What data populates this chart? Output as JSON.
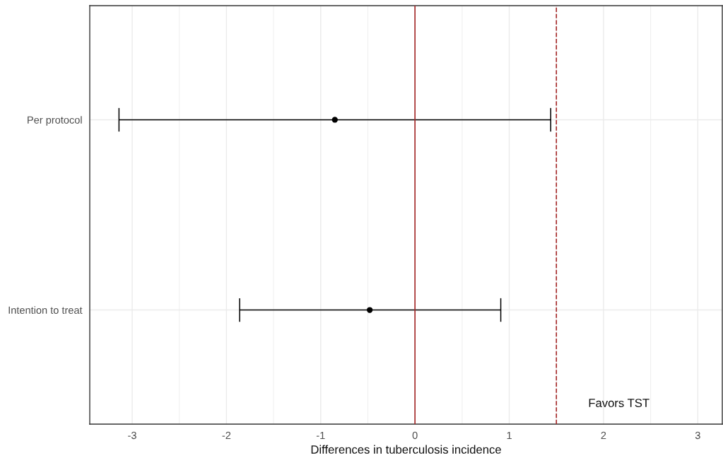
{
  "chart_data": {
    "type": "scatter",
    "orientation": "horizontal",
    "categories": [
      "Per protocol",
      "Intention to treat"
    ],
    "series": [
      {
        "color": "#000000",
        "values": [
          -0.85,
          -0.48
        ],
        "errors": [
          [
            -3.14,
            1.44
          ],
          [
            -1.86,
            0.91
          ]
        ]
      }
    ],
    "xlabel": "Differences in tuberculosis incidence",
    "xlim": [
      -3.45,
      3.26
    ],
    "xticks": [
      -3,
      -2,
      -1,
      0,
      1,
      2,
      3
    ],
    "ref_lines": [
      {
        "axis": "x",
        "value": 0,
        "color": "#a52a2a",
        "line_style": "solid"
      },
      {
        "axis": "x",
        "value": 1.5,
        "color": "#a52a2a",
        "line_style": "dashed"
      }
    ],
    "annotations": [
      "Favors TST"
    ],
    "grid": true,
    "marker": "circle"
  }
}
